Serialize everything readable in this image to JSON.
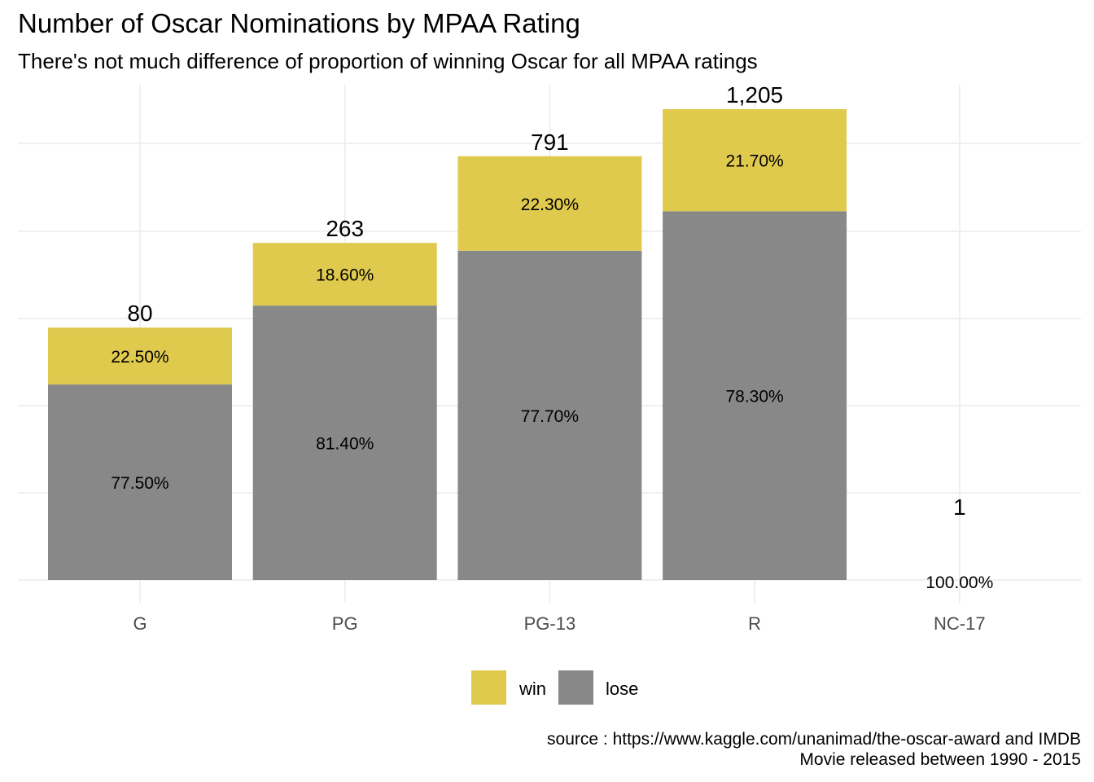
{
  "chart_data": {
    "type": "bar",
    "stacked": true,
    "title": "Number of Oscar Nominations by MPAA Rating",
    "subtitle": "There's not much difference of proportion of winning Oscar for all MPAA ratings",
    "xlabel": "",
    "ylabel": "",
    "categories": [
      "G",
      "PG",
      "PG-13",
      "R",
      "NC-17"
    ],
    "totals": [
      80,
      263,
      791,
      1205,
      1
    ],
    "total_labels": [
      "80",
      "263",
      "791",
      "1,205",
      "1"
    ],
    "bar_heights": [
      0.536,
      0.716,
      0.9,
      1.0,
      0.0
    ],
    "series": [
      {
        "name": "lose",
        "color": "#888888",
        "share": [
          0.775,
          0.814,
          0.777,
          0.783,
          1.0
        ],
        "labels": [
          "77.50%",
          "81.40%",
          "77.70%",
          "78.30%",
          "100.00%"
        ]
      },
      {
        "name": "win",
        "color": "#dfca4e",
        "share": [
          0.225,
          0.186,
          0.223,
          0.217,
          0.0
        ],
        "labels": [
          "22.50%",
          "18.60%",
          "22.30%",
          "21.70%",
          ""
        ]
      }
    ],
    "legend": {
      "position": "bottom",
      "items": [
        {
          "name": "win",
          "color": "#dfca4e"
        },
        {
          "name": "lose",
          "color": "#888888"
        }
      ]
    },
    "grid": true,
    "caption_lines": [
      "source : https://www.kaggle.com/unanimad/the-oscar-award and IMDB",
      "Movie released between 1990 - 2015"
    ]
  }
}
